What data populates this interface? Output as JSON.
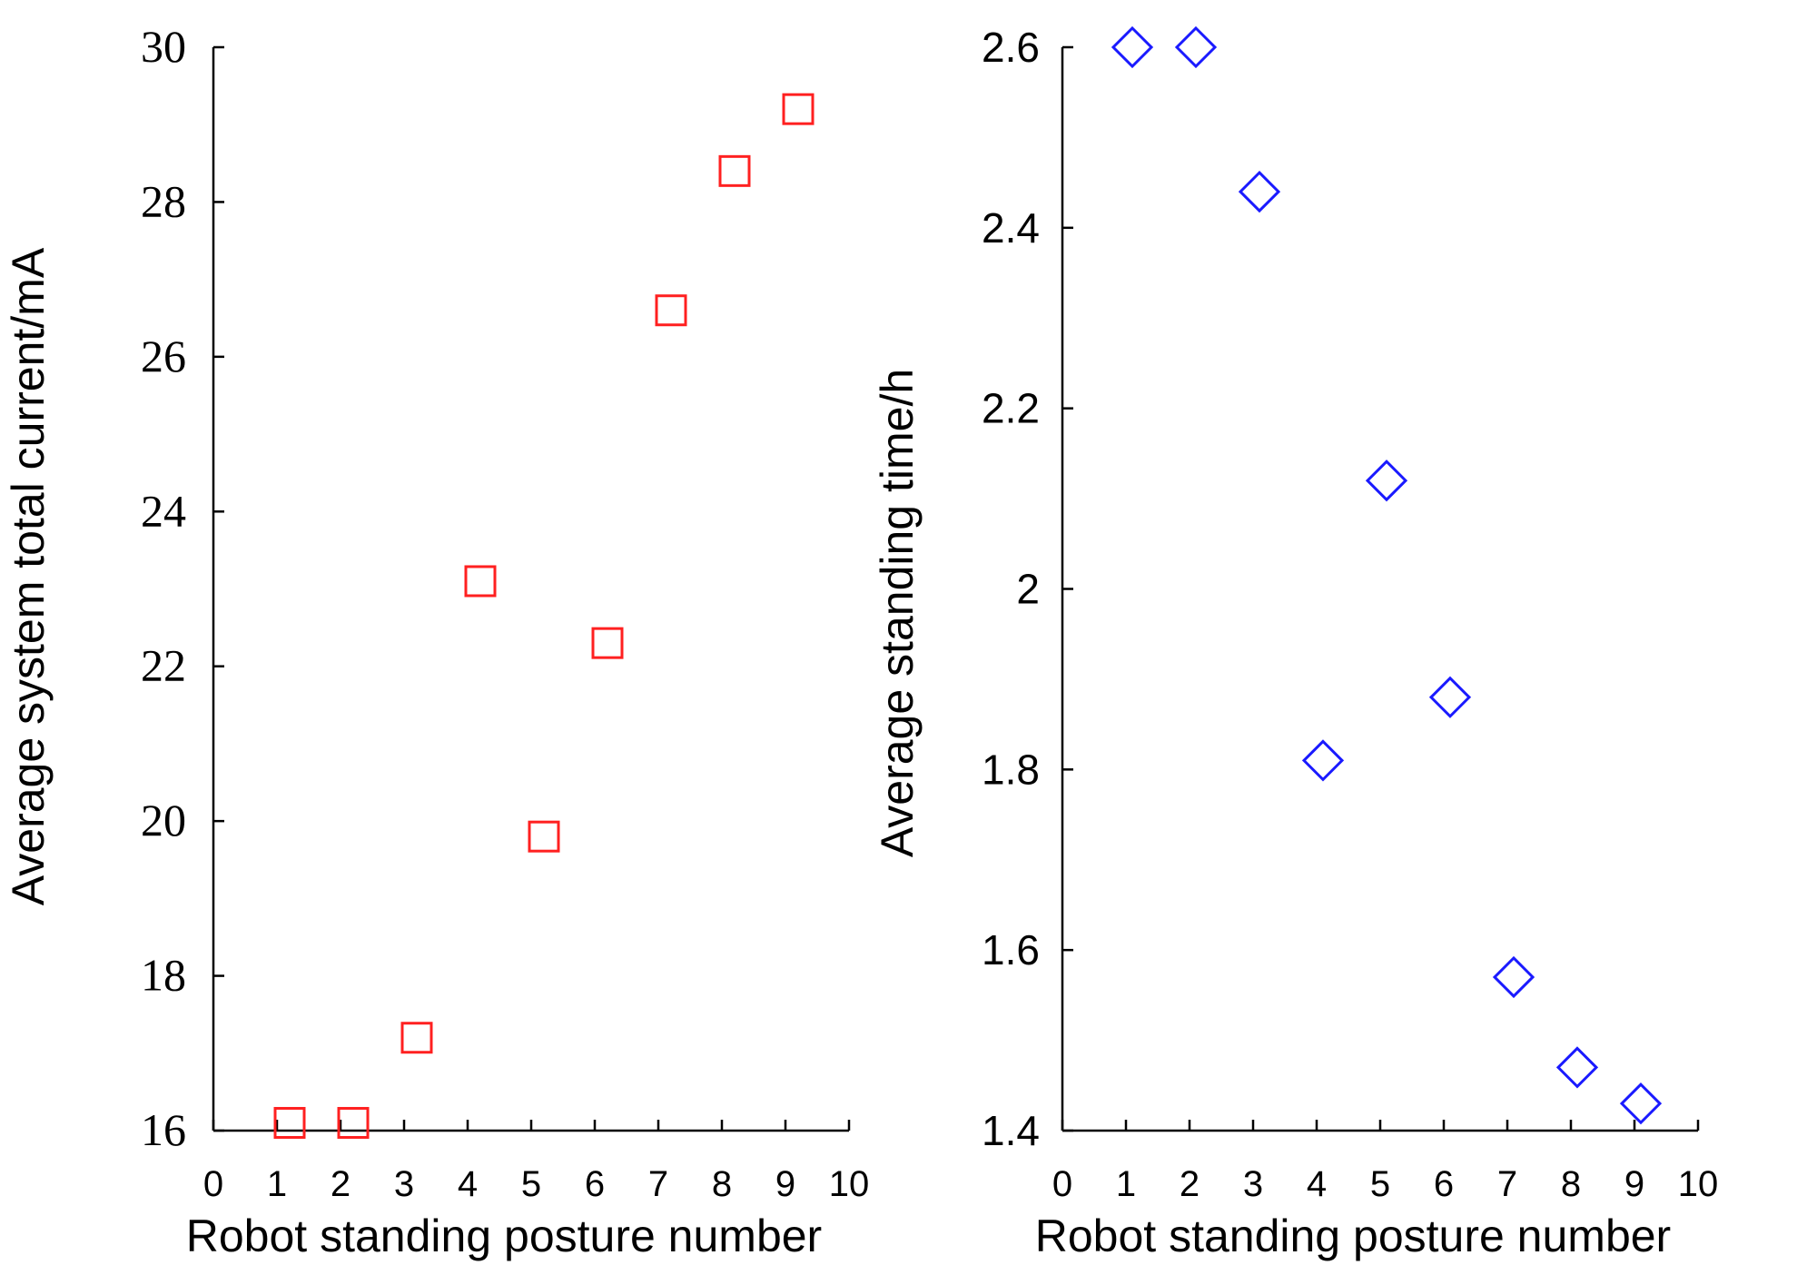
{
  "chart_data": [
    {
      "type": "scatter",
      "xlabel": "Robot standing posture number",
      "ylabel": "Average system total current/mA",
      "xlim": [
        0,
        10
      ],
      "ylim": [
        16,
        30
      ],
      "xticks": [
        "0",
        "1",
        "2",
        "3",
        "4",
        "5",
        "6",
        "7",
        "8",
        "9",
        "10"
      ],
      "yticks": [
        "16",
        "18",
        "20",
        "22",
        "24",
        "26",
        "28",
        "30"
      ],
      "ytick_values": [
        16,
        18,
        20,
        22,
        24,
        26,
        28,
        30
      ],
      "grid": false,
      "marker": "square",
      "color": "#ff2020",
      "series": [
        {
          "x": [
            1.2,
            2.2,
            3.2,
            4.2,
            5.2,
            6.2,
            7.2,
            8.2,
            9.2
          ],
          "y": [
            16.1,
            16.1,
            17.2,
            23.1,
            19.8,
            22.3,
            26.6,
            28.4,
            29.2
          ]
        }
      ]
    },
    {
      "type": "scatter",
      "xlabel": "Robot standing posture number",
      "ylabel": "Average standing time/h",
      "xlim": [
        0,
        10
      ],
      "ylim": [
        1.4,
        2.6
      ],
      "xticks": [
        "0",
        "1",
        "2",
        "3",
        "4",
        "5",
        "6",
        "7",
        "8",
        "9",
        "10"
      ],
      "yticks": [
        "1.4",
        "1.6",
        "1.8",
        "2",
        "2.2",
        "2.4",
        "2.6"
      ],
      "ytick_values": [
        1.4,
        1.6,
        1.8,
        2.0,
        2.2,
        2.4,
        2.6
      ],
      "grid": false,
      "marker": "diamond",
      "color": "#1a1aff",
      "series": [
        {
          "x": [
            1.1,
            2.1,
            3.1,
            4.1,
            5.1,
            6.1,
            7.1,
            8.1,
            9.1
          ],
          "y": [
            2.6,
            2.6,
            2.44,
            1.81,
            2.12,
            1.88,
            1.57,
            1.47,
            1.43
          ]
        }
      ]
    }
  ]
}
